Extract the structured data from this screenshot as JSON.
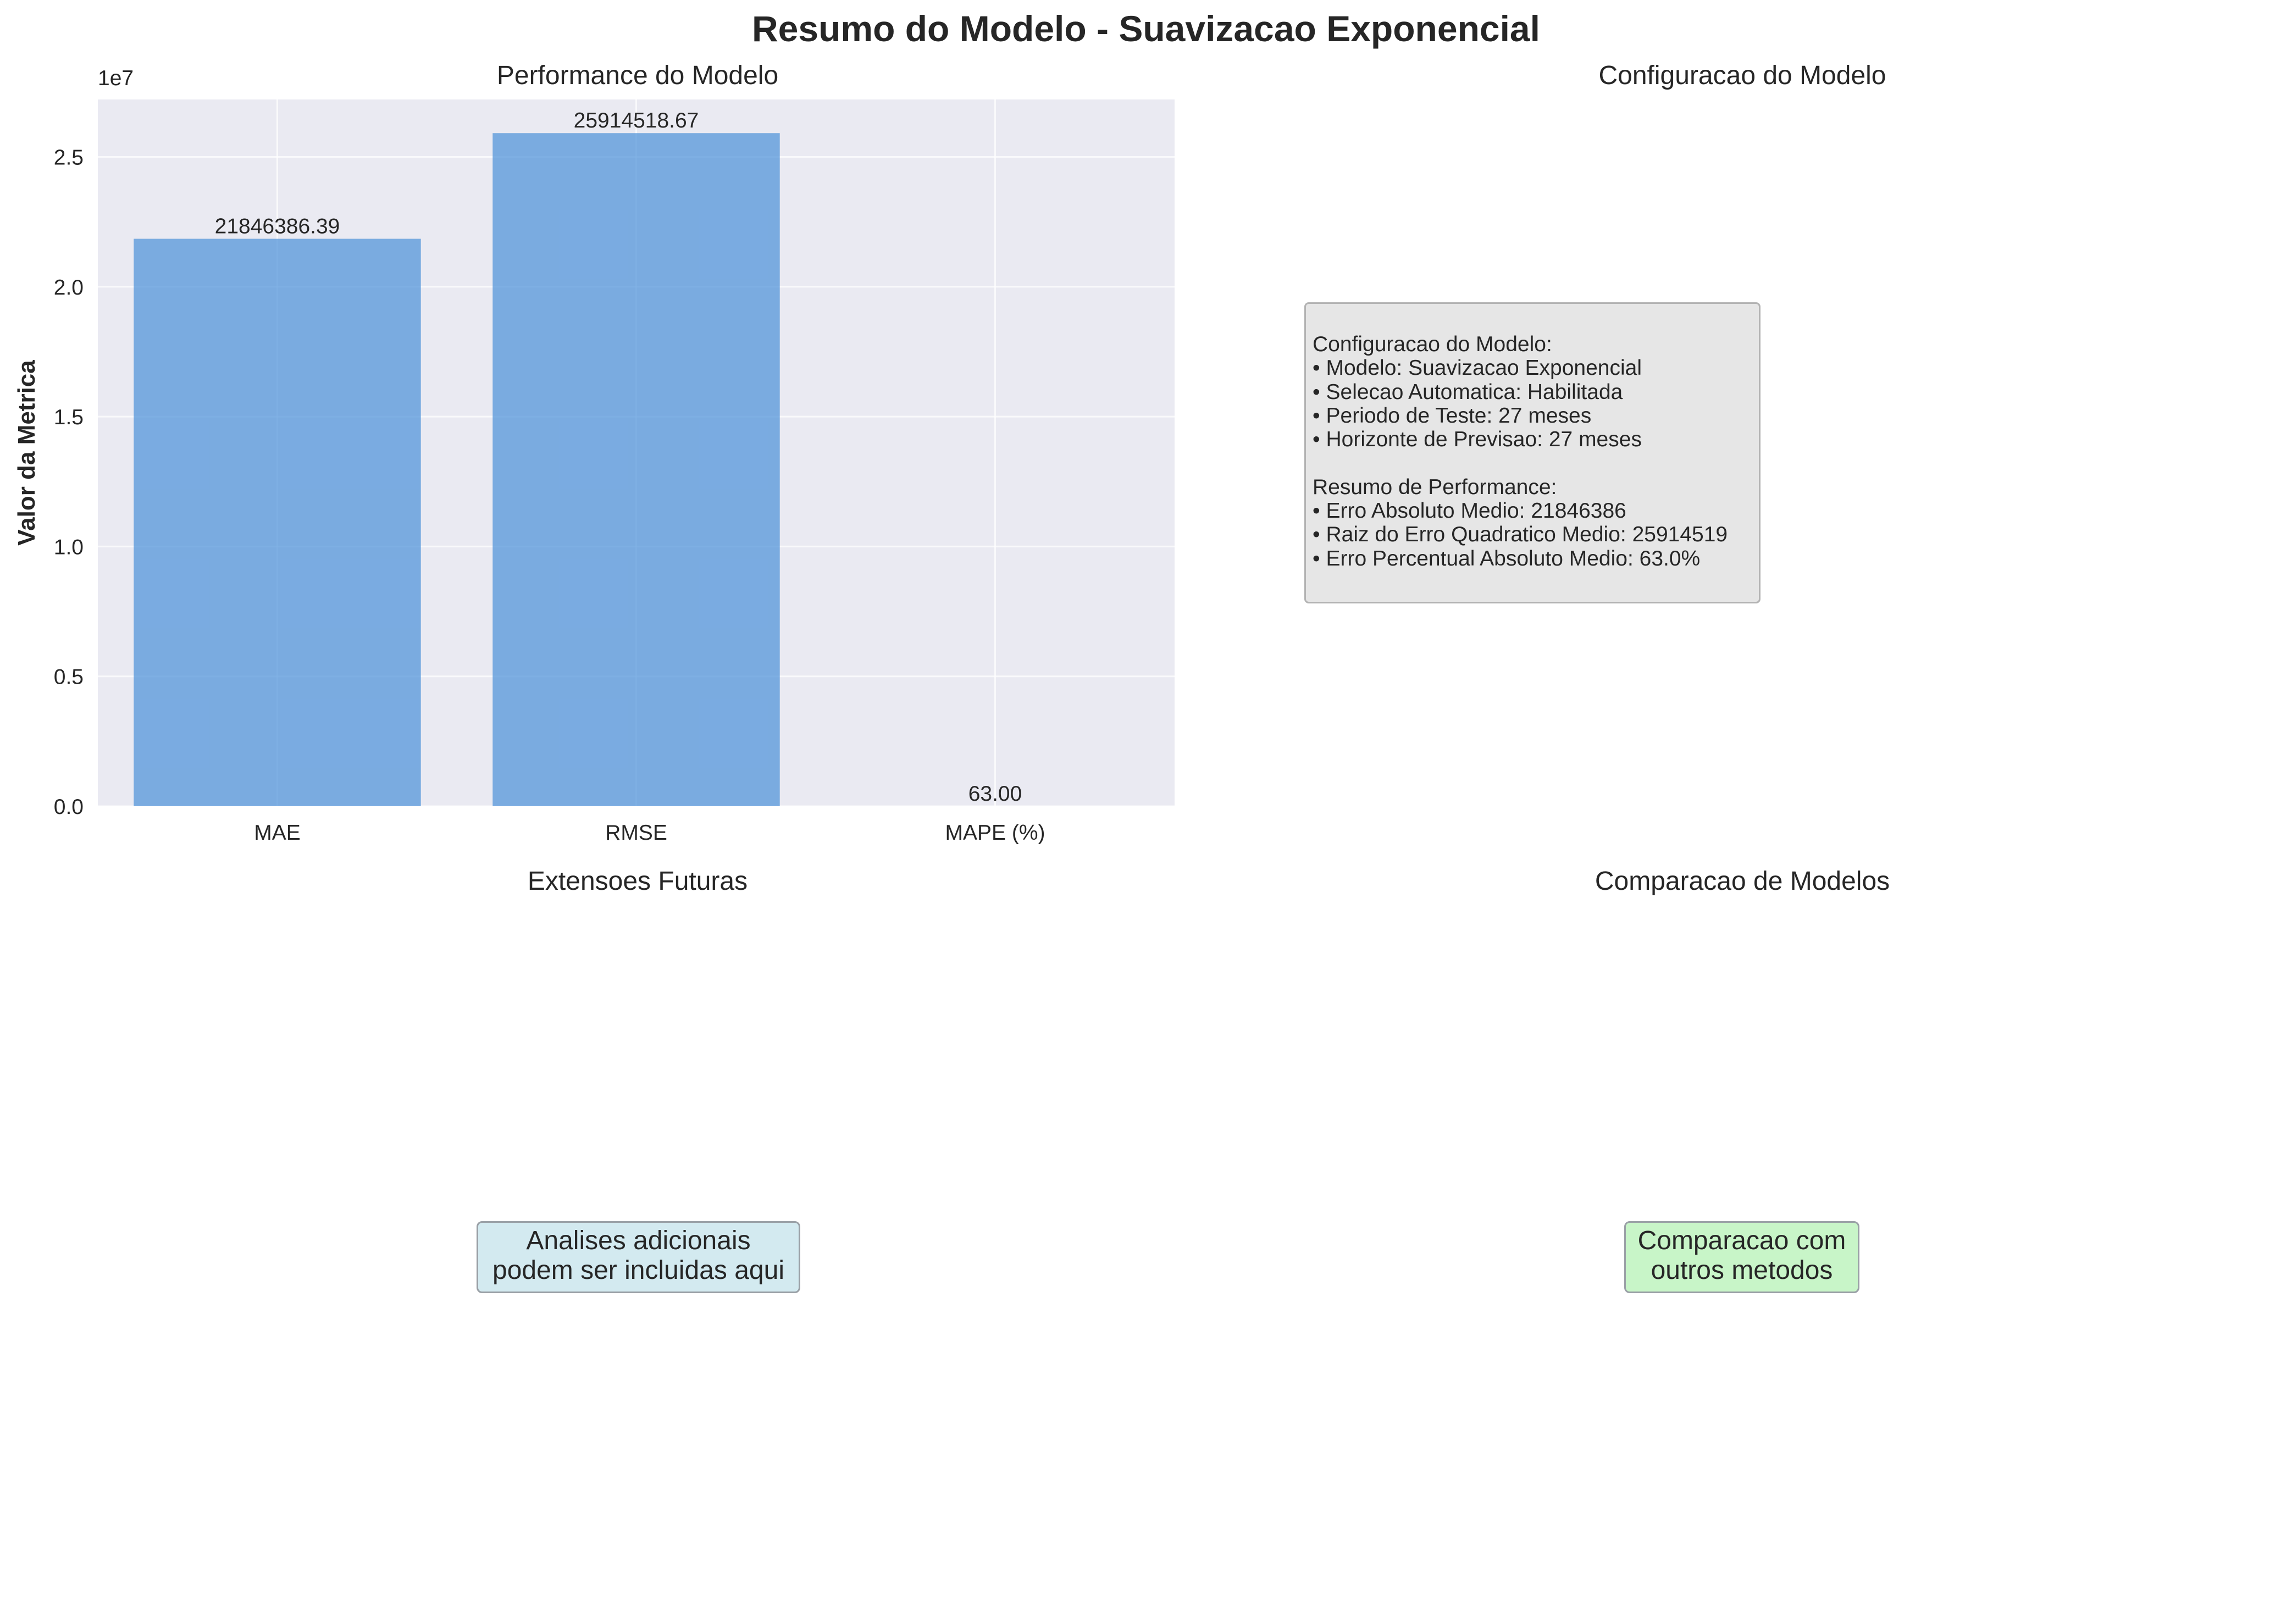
{
  "figure": {
    "suptitle": "Resumo do Modelo - Suavizacao Exponencial",
    "panel_titles": {
      "performance": "Performance do Modelo",
      "config": "Configuracao do Modelo",
      "future": "Extensoes Futuras",
      "comparison": "Comparacao de Modelos"
    }
  },
  "chart_data": {
    "type": "bar",
    "title": "Performance do Modelo",
    "xlabel": "",
    "ylabel": "Valor da Metrica",
    "y_offset_label": "1e7",
    "categories": [
      "MAE",
      "RMSE",
      "MAPE (%)"
    ],
    "values": [
      21846386.39,
      25914518.67,
      63.0
    ],
    "value_labels": [
      "21846386.39",
      "25914518.67",
      "63.00"
    ],
    "yticks": [
      0,
      5000000,
      10000000,
      15000000,
      20000000,
      25000000
    ],
    "ytick_labels": [
      "0.0",
      "0.5",
      "1.0",
      "1.5",
      "2.0",
      "2.5"
    ],
    "ylim": [
      0,
      27210244.6
    ],
    "grid": true,
    "bar_color": "#4a90d9",
    "bar_alpha": 0.7,
    "background": "#eaeaf2"
  },
  "config_panel": {
    "lines": [
      "Configuracao do Modelo:",
      "• Modelo: Suavizacao Exponencial",
      "• Selecao Automatica: Habilitada",
      "• Periodo de Teste: 27 meses",
      "• Horizonte de Previsao: 27 meses",
      "",
      "Resumo de Performance:",
      "• Erro Absoluto Medio: 21846386",
      "• Raiz do Erro Quadratico Medio: 25914519",
      "• Erro Percentual Absoluto Medio: 63.0%"
    ]
  },
  "future_panel": {
    "lines": [
      "Analises adicionais",
      "podem ser incluidas aqui"
    ],
    "color": "#add8e6"
  },
  "comparison_panel": {
    "lines": [
      "Comparacao com",
      "outros metodos"
    ],
    "color": "#90ee90"
  }
}
